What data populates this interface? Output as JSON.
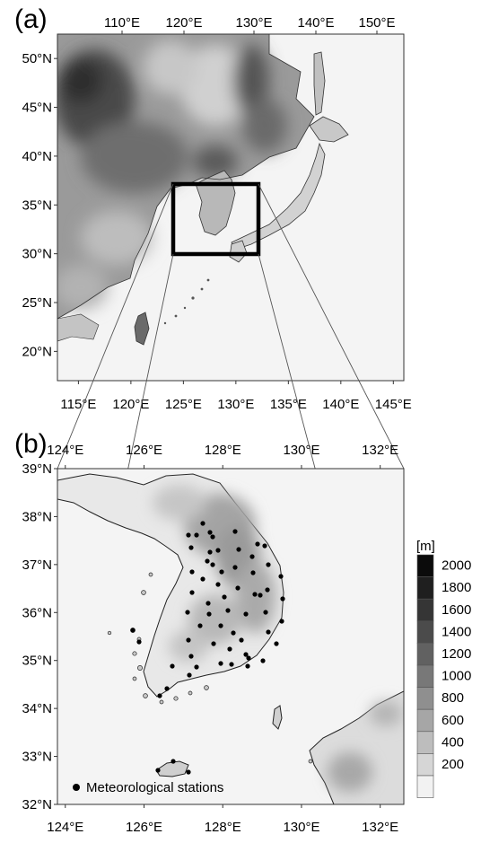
{
  "panel_a": {
    "label": "(a)",
    "lon_ticks_top": [
      "110°E",
      "120°E",
      "130°E",
      "140°E",
      "150°E"
    ],
    "lon_ticks_bottom": [
      "115°E",
      "120°E",
      "125°E",
      "130°E",
      "135°E",
      "140°E",
      "145°E"
    ],
    "lat_ticks": [
      "50°N",
      "45°N",
      "40°N",
      "35°N",
      "30°N",
      "25°N",
      "20°N"
    ]
  },
  "panel_b": {
    "label": "(b)",
    "lon_ticks_top": [
      "124°E",
      "126°E",
      "128°E",
      "130°E",
      "132°E"
    ],
    "lon_ticks_bottom": [
      "124°E",
      "126°E",
      "128°E",
      "130°E",
      "132°E"
    ],
    "lat_ticks": [
      "39°N",
      "38°N",
      "37°N",
      "36°N",
      "35°N",
      "34°N",
      "33°N",
      "32°N"
    ],
    "legend_label": "Meteorological stations"
  },
  "colorbar": {
    "unit": "[m]",
    "levels": [
      "2000",
      "1800",
      "1600",
      "1400",
      "1200",
      "1000",
      "800",
      "600",
      "400",
      "200"
    ],
    "shades": [
      "#0b0b0b",
      "#1f1f1f",
      "#353535",
      "#4b4b4b",
      "#616161",
      "#787878",
      "#8f8f8f",
      "#a6a6a6",
      "#bdbdbd",
      "#d6d6d6",
      "#f2f2f2"
    ]
  }
}
